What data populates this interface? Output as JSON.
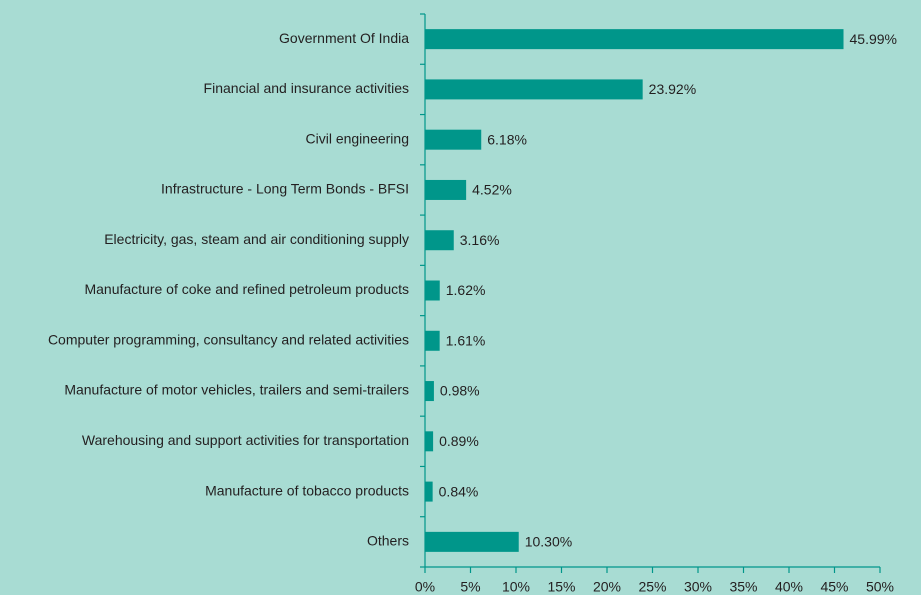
{
  "chart_data": {
    "type": "bar",
    "orientation": "horizontal",
    "color": "#00968a",
    "categories": [
      "Government Of India",
      "Financial and insurance activities",
      "Civil engineering",
      "Infrastructure - Long Term Bonds - BFSI",
      "Electricity, gas, steam and air conditioning supply",
      "Manufacture of coke and refined petroleum products",
      "Computer programming, consultancy and related activities",
      "Manufacture of motor vehicles, trailers and semi-trailers",
      "Warehousing and support activities for transportation",
      "Manufacture of tobacco products",
      "Others"
    ],
    "values": [
      45.99,
      23.92,
      6.18,
      4.52,
      3.16,
      1.62,
      1.61,
      0.98,
      0.89,
      0.84,
      10.3
    ],
    "value_labels": [
      "45.99%",
      "23.92%",
      "6.18%",
      "4.52%",
      "3.16%",
      "1.62%",
      "1.61%",
      "0.98%",
      "0.89%",
      "0.84%",
      "10.30%"
    ],
    "xlim": [
      0,
      50
    ],
    "xticks": [
      {
        "value": 0,
        "label": "0%"
      },
      {
        "value": 5,
        "label": "5%"
      },
      {
        "value": 10,
        "label": "10%"
      },
      {
        "value": 15,
        "label": "15%"
      },
      {
        "value": 20,
        "label": "20%"
      },
      {
        "value": 25,
        "label": "25%"
      },
      {
        "value": 30,
        "label": "30%"
      },
      {
        "value": 35,
        "label": "35%"
      },
      {
        "value": 40,
        "label": "40%"
      },
      {
        "value": 45,
        "label": "45%"
      },
      {
        "value": 50,
        "label": "50%"
      }
    ]
  }
}
